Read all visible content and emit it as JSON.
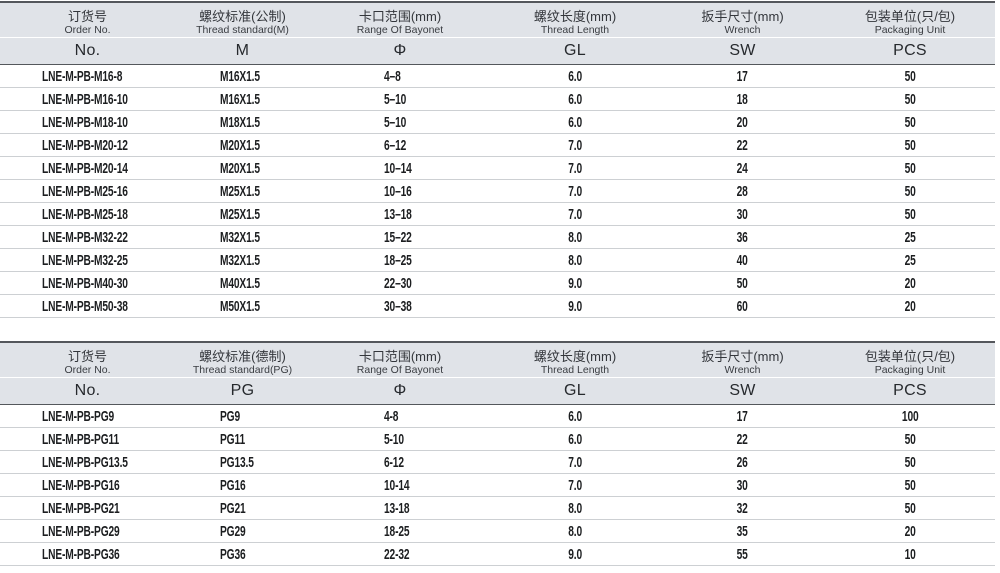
{
  "colors": {
    "header_background": "#e0e3e8",
    "table_border_dark": "#54575c",
    "row_divider": "#cdd0d3",
    "header_text": "#33363b",
    "body_text": "#1c1e20"
  },
  "tables": [
    {
      "name": "metric-thread-table",
      "columns": [
        {
          "zh": "订货号",
          "en": "Order No.",
          "sub": "No."
        },
        {
          "zh": "螺纹标准(公制)",
          "en": "Thread standard(M)",
          "sub": "M"
        },
        {
          "zh": "卡口范围(mm)",
          "en": "Range Of Bayonet",
          "sub": "Φ"
        },
        {
          "zh": "螺纹长度(mm)",
          "en": "Thread Length",
          "sub": "GL"
        },
        {
          "zh": "扳手尺寸(mm)",
          "en": "Wrench",
          "sub": "SW"
        },
        {
          "zh": "包装单位(只/包)",
          "en": "Packaging Unit",
          "sub": "PCS"
        }
      ],
      "rows": [
        [
          "LNE-M-PB-M16-8",
          "M16X1.5",
          "4–8",
          "6.0",
          "17",
          "50"
        ],
        [
          "LNE-M-PB-M16-10",
          "M16X1.5",
          "5–10",
          "6.0",
          "18",
          "50"
        ],
        [
          "LNE-M-PB-M18-10",
          "M18X1.5",
          "5–10",
          "6.0",
          "20",
          "50"
        ],
        [
          "LNE-M-PB-M20-12",
          "M20X1.5",
          "6–12",
          "7.0",
          "22",
          "50"
        ],
        [
          "LNE-M-PB-M20-14",
          "M20X1.5",
          "10–14",
          "7.0",
          "24",
          "50"
        ],
        [
          "LNE-M-PB-M25-16",
          "M25X1.5",
          "10–16",
          "7.0",
          "28",
          "50"
        ],
        [
          "LNE-M-PB-M25-18",
          "M25X1.5",
          "13–18",
          "7.0",
          "30",
          "50"
        ],
        [
          "LNE-M-PB-M32-22",
          "M32X1.5",
          "15–22",
          "8.0",
          "36",
          "25"
        ],
        [
          "LNE-M-PB-M32-25",
          "M32X1.5",
          "18–25",
          "8.0",
          "40",
          "25"
        ],
        [
          "LNE-M-PB-M40-30",
          "M40X1.5",
          "22–30",
          "9.0",
          "50",
          "20"
        ],
        [
          "LNE-M-PB-M50-38",
          "M50X1.5",
          "30–38",
          "9.0",
          "60",
          "20"
        ]
      ]
    },
    {
      "name": "pg-thread-table",
      "columns": [
        {
          "zh": "订货号",
          "en": "Order No.",
          "sub": "No."
        },
        {
          "zh": "螺纹标准(德制)",
          "en": "Thread standard(PG)",
          "sub": "PG"
        },
        {
          "zh": "卡口范围(mm)",
          "en": "Range Of Bayonet",
          "sub": "Φ"
        },
        {
          "zh": "螺纹长度(mm)",
          "en": "Thread Length",
          "sub": "GL"
        },
        {
          "zh": "扳手尺寸(mm)",
          "en": "Wrench",
          "sub": "SW"
        },
        {
          "zh": "包装单位(只/包)",
          "en": "Packaging Unit",
          "sub": "PCS"
        }
      ],
      "rows": [
        [
          "LNE-M-PB-PG9",
          "PG9",
          "4-8",
          "6.0",
          "17",
          "100"
        ],
        [
          "LNE-M-PB-PG11",
          "PG11",
          "5-10",
          "6.0",
          "22",
          "50"
        ],
        [
          "LNE-M-PB-PG13.5",
          "PG13.5",
          "6-12",
          "7.0",
          "26",
          "50"
        ],
        [
          "LNE-M-PB-PG16",
          "PG16",
          "10-14",
          "7.0",
          "30",
          "50"
        ],
        [
          "LNE-M-PB-PG21",
          "PG21",
          "13-18",
          "8.0",
          "32",
          "50"
        ],
        [
          "LNE-M-PB-PG29",
          "PG29",
          "18-25",
          "8.0",
          "35",
          "20"
        ],
        [
          "LNE-M-PB-PG36",
          "PG36",
          "22-32",
          "9.0",
          "55",
          "10"
        ]
      ]
    }
  ]
}
